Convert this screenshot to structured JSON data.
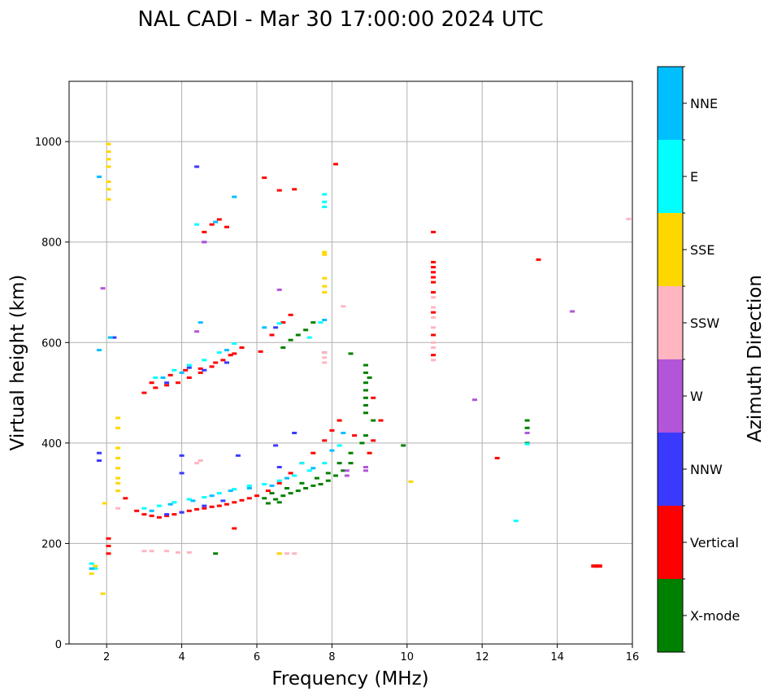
{
  "chart_data": {
    "type": "scatter",
    "title": "NAL CADI - Mar 30 17:00:00 2024 UTC",
    "xlabel": "Frequency (MHz)",
    "ylabel": "Virtual height (km)",
    "xlim": [
      1,
      16
    ],
    "ylim": [
      0,
      1120
    ],
    "xticks": [
      2,
      4,
      6,
      8,
      10,
      12,
      14,
      16
    ],
    "yticks": [
      0,
      200,
      400,
      600,
      800,
      1000
    ],
    "grid": true,
    "colorbar": {
      "label": "Azimuth Direction",
      "categories": [
        "X-mode",
        "Vertical",
        "NNW",
        "W",
        "SSW",
        "SSE",
        "E",
        "NNE"
      ],
      "colors": [
        "#008000",
        "#ff0000",
        "#3a3aff",
        "#b355d8",
        "#ffb6c1",
        "#ffd700",
        "#00ffff",
        "#00bfff"
      ]
    },
    "series": [
      {
        "name": "X-mode",
        "points": [
          [
            6.3,
            280
          ],
          [
            6.5,
            288
          ],
          [
            6.7,
            295
          ],
          [
            6.9,
            300
          ],
          [
            7.1,
            305
          ],
          [
            7.3,
            310
          ],
          [
            7.5,
            315
          ],
          [
            7.7,
            318
          ],
          [
            7.9,
            325
          ],
          [
            8.1,
            335
          ],
          [
            8.3,
            345
          ],
          [
            8.5,
            360
          ],
          [
            6.4,
            300
          ],
          [
            6.8,
            310
          ],
          [
            7.2,
            320
          ],
          [
            7.6,
            330
          ],
          [
            7.9,
            340
          ],
          [
            8.2,
            360
          ],
          [
            8.5,
            380
          ],
          [
            8.8,
            400
          ],
          [
            8.9,
            415
          ],
          [
            9.1,
            445
          ],
          [
            8.9,
            460
          ],
          [
            8.9,
            475
          ],
          [
            8.9,
            490
          ],
          [
            8.9,
            505
          ],
          [
            8.9,
            520
          ],
          [
            8.9,
            540
          ],
          [
            8.9,
            555
          ],
          [
            9.0,
            530
          ],
          [
            13.2,
            400
          ],
          [
            13.2,
            430
          ],
          [
            13.2,
            445
          ],
          [
            9.9,
            395
          ],
          [
            6.7,
            590
          ],
          [
            6.9,
            605
          ],
          [
            7.1,
            615
          ],
          [
            7.3,
            625
          ],
          [
            7.5,
            640
          ],
          [
            7.8,
            580
          ],
          [
            8.5,
            578
          ],
          [
            4.9,
            180
          ],
          [
            6.2,
            290
          ],
          [
            6.6,
            282
          ]
        ]
      },
      {
        "name": "Vertical",
        "points": [
          [
            2.5,
            290
          ],
          [
            2.8,
            265
          ],
          [
            3.0,
            258
          ],
          [
            3.2,
            255
          ],
          [
            3.4,
            252
          ],
          [
            3.6,
            255
          ],
          [
            3.8,
            258
          ],
          [
            4.0,
            262
          ],
          [
            4.2,
            265
          ],
          [
            4.4,
            268
          ],
          [
            4.6,
            270
          ],
          [
            4.8,
            273
          ],
          [
            5.0,
            275
          ],
          [
            5.2,
            278
          ],
          [
            5.4,
            282
          ],
          [
            5.6,
            286
          ],
          [
            5.8,
            290
          ],
          [
            6.0,
            295
          ],
          [
            6.3,
            305
          ],
          [
            6.6,
            320
          ],
          [
            6.9,
            340
          ],
          [
            7.2,
            360
          ],
          [
            7.5,
            380
          ],
          [
            7.8,
            405
          ],
          [
            8.0,
            425
          ],
          [
            8.2,
            445
          ],
          [
            8.6,
            415
          ],
          [
            9.0,
            380
          ],
          [
            9.1,
            405
          ],
          [
            9.3,
            445
          ],
          [
            9.1,
            490
          ],
          [
            3.0,
            500
          ],
          [
            3.3,
            510
          ],
          [
            3.6,
            515
          ],
          [
            3.9,
            520
          ],
          [
            4.2,
            530
          ],
          [
            4.5,
            540
          ],
          [
            4.8,
            552
          ],
          [
            5.1,
            565
          ],
          [
            5.4,
            578
          ],
          [
            5.6,
            590
          ],
          [
            3.2,
            520
          ],
          [
            3.7,
            535
          ],
          [
            4.1,
            545
          ],
          [
            4.5,
            548
          ],
          [
            4.9,
            560
          ],
          [
            5.3,
            575
          ],
          [
            6.1,
            582
          ],
          [
            6.4,
            615
          ],
          [
            6.7,
            640
          ],
          [
            6.9,
            655
          ],
          [
            4.6,
            820
          ],
          [
            4.8,
            835
          ],
          [
            5.0,
            845
          ],
          [
            5.2,
            830
          ],
          [
            6.2,
            928
          ],
          [
            6.6,
            903
          ],
          [
            7.0,
            905
          ],
          [
            8.1,
            955
          ],
          [
            10.7,
            820
          ],
          [
            10.7,
            760
          ],
          [
            10.7,
            750
          ],
          [
            10.7,
            740
          ],
          [
            10.7,
            730
          ],
          [
            10.7,
            720
          ],
          [
            10.7,
            700
          ],
          [
            10.7,
            660
          ],
          [
            10.7,
            615
          ],
          [
            10.7,
            575
          ],
          [
            12.4,
            370
          ],
          [
            13.5,
            765
          ],
          [
            15.0,
            155
          ],
          [
            15.1,
            155
          ],
          [
            2.05,
            210
          ],
          [
            2.05,
            195
          ],
          [
            2.05,
            180
          ],
          [
            5.4,
            230
          ]
        ]
      },
      {
        "name": "NNW",
        "points": [
          [
            3.6,
            258
          ],
          [
            4.0,
            262
          ],
          [
            4.6,
            275
          ],
          [
            5.1,
            285
          ],
          [
            6.5,
            395
          ],
          [
            7.0,
            420
          ],
          [
            4.0,
            375
          ],
          [
            3.6,
            520
          ],
          [
            4.2,
            550
          ],
          [
            4.6,
            545
          ],
          [
            5.2,
            560
          ],
          [
            6.5,
            630
          ],
          [
            4.4,
            950
          ],
          [
            4.6,
            800
          ],
          [
            1.8,
            380
          ],
          [
            1.8,
            365
          ],
          [
            2.2,
            610
          ],
          [
            4.0,
            340
          ],
          [
            5.5,
            375
          ],
          [
            6.6,
            352
          ]
        ]
      },
      {
        "name": "W",
        "points": [
          [
            8.4,
            335
          ],
          [
            8.4,
            345
          ],
          [
            8.9,
            345
          ],
          [
            8.9,
            352
          ],
          [
            13.2,
            420
          ],
          [
            14.4,
            662
          ],
          [
            11.8,
            486
          ],
          [
            4.4,
            622
          ],
          [
            1.9,
            708
          ],
          [
            4.6,
            800
          ],
          [
            6.6,
            705
          ]
        ]
      },
      {
        "name": "SSW",
        "points": [
          [
            3.0,
            185
          ],
          [
            3.2,
            185
          ],
          [
            3.6,
            185
          ],
          [
            3.9,
            182
          ],
          [
            4.2,
            182
          ],
          [
            6.6,
            180
          ],
          [
            6.8,
            180
          ],
          [
            7.0,
            180
          ],
          [
            10.7,
            690
          ],
          [
            10.7,
            670
          ],
          [
            10.7,
            650
          ],
          [
            10.7,
            630
          ],
          [
            10.7,
            600
          ],
          [
            10.7,
            590
          ],
          [
            10.7,
            565
          ],
          [
            7.8,
            560
          ],
          [
            7.8,
            570
          ],
          [
            7.8,
            580
          ],
          [
            8.3,
            672
          ],
          [
            15.9,
            846
          ],
          [
            4.4,
            360
          ],
          [
            2.3,
            270
          ],
          [
            4.5,
            365
          ]
        ]
      },
      {
        "name": "SSE",
        "points": [
          [
            2.05,
            995
          ],
          [
            2.05,
            980
          ],
          [
            2.05,
            965
          ],
          [
            2.05,
            950
          ],
          [
            2.05,
            920
          ],
          [
            2.05,
            905
          ],
          [
            2.05,
            885
          ],
          [
            2.3,
            450
          ],
          [
            2.3,
            430
          ],
          [
            2.3,
            390
          ],
          [
            2.3,
            370
          ],
          [
            2.3,
            350
          ],
          [
            2.3,
            330
          ],
          [
            2.3,
            320
          ],
          [
            2.3,
            305
          ],
          [
            1.6,
            140
          ],
          [
            1.7,
            155
          ],
          [
            1.9,
            100
          ],
          [
            7.8,
            780
          ],
          [
            7.8,
            775
          ],
          [
            7.8,
            728
          ],
          [
            7.8,
            712
          ],
          [
            7.8,
            700
          ],
          [
            10.1,
            323
          ],
          [
            6.6,
            180
          ],
          [
            1.95,
            280
          ]
        ]
      },
      {
        "name": "E",
        "points": [
          [
            3.0,
            270
          ],
          [
            3.4,
            275
          ],
          [
            3.8,
            282
          ],
          [
            4.2,
            288
          ],
          [
            4.6,
            292
          ],
          [
            5.0,
            300
          ],
          [
            5.4,
            308
          ],
          [
            5.8,
            315
          ],
          [
            6.2,
            318
          ],
          [
            6.6,
            325
          ],
          [
            7.0,
            335
          ],
          [
            7.4,
            345
          ],
          [
            7.8,
            360
          ],
          [
            8.2,
            395
          ],
          [
            3.3,
            530
          ],
          [
            3.8,
            545
          ],
          [
            4.2,
            555
          ],
          [
            4.6,
            565
          ],
          [
            5.0,
            580
          ],
          [
            5.4,
            598
          ],
          [
            7.4,
            610
          ],
          [
            7.7,
            640
          ],
          [
            7.8,
            870
          ],
          [
            7.8,
            880
          ],
          [
            7.8,
            895
          ],
          [
            4.4,
            835
          ],
          [
            7.2,
            360
          ],
          [
            12.9,
            245
          ],
          [
            13.2,
            398
          ],
          [
            6.6,
            638
          ],
          [
            1.6,
            160
          ],
          [
            1.7,
            150
          ]
        ]
      },
      {
        "name": "NNE",
        "points": [
          [
            3.2,
            265
          ],
          [
            3.7,
            278
          ],
          [
            4.3,
            285
          ],
          [
            4.8,
            295
          ],
          [
            5.3,
            305
          ],
          [
            5.8,
            310
          ],
          [
            6.4,
            315
          ],
          [
            6.8,
            330
          ],
          [
            7.5,
            350
          ],
          [
            8.0,
            385
          ],
          [
            8.3,
            420
          ],
          [
            3.5,
            530
          ],
          [
            4.0,
            540
          ],
          [
            5.2,
            585
          ],
          [
            4.5,
            640
          ],
          [
            5.4,
            890
          ],
          [
            4.9,
            840
          ],
          [
            7.8,
            645
          ],
          [
            6.2,
            630
          ],
          [
            2.1,
            610
          ],
          [
            1.8,
            930
          ],
          [
            1.8,
            585
          ],
          [
            1.6,
            150
          ]
        ]
      }
    ]
  }
}
